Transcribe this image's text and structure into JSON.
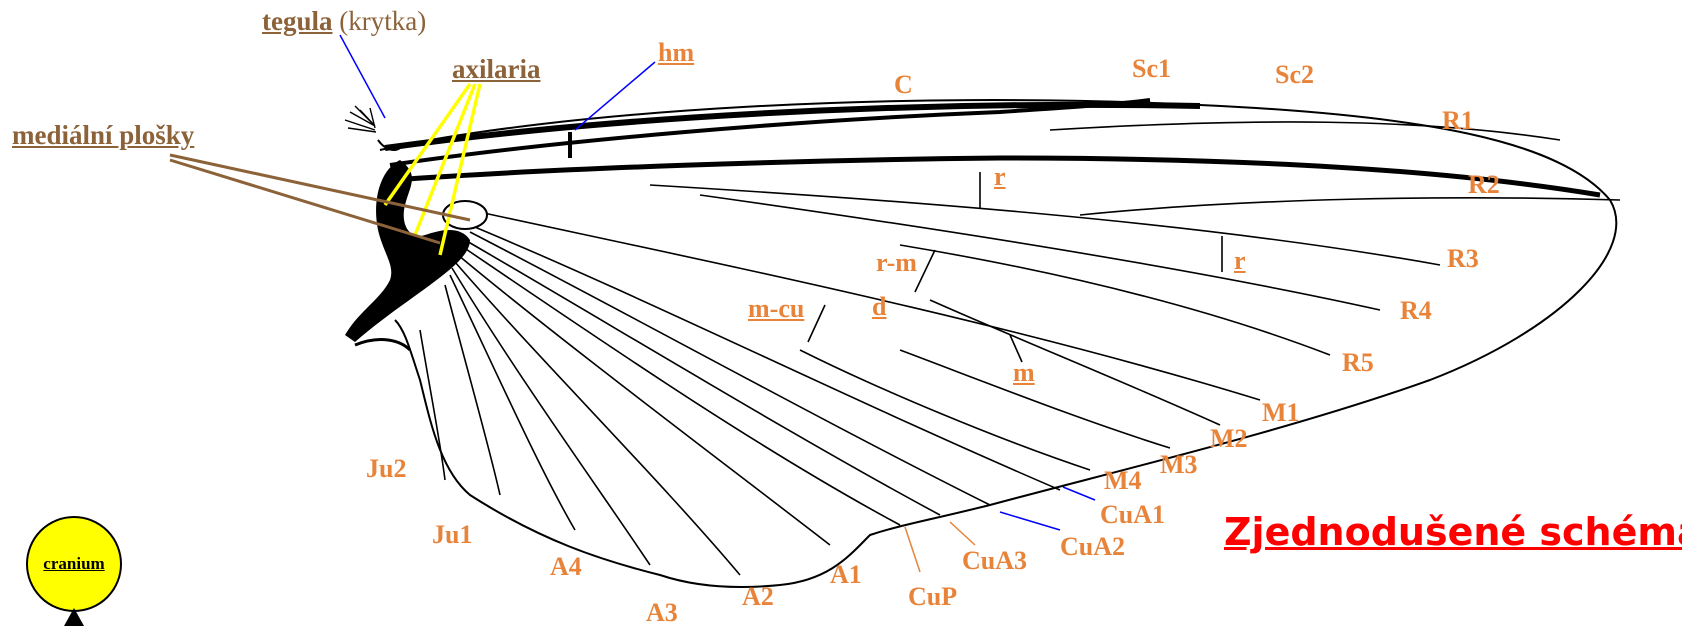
{
  "title": "Zjednodušené schéma",
  "annotations": {
    "tegula": "tegula",
    "tegula_note": "(krytka)",
    "axilaria": "axilaria",
    "medialni": "mediální plošky",
    "hm": "hm"
  },
  "veins": {
    "C": "C",
    "Sc1": "Sc1",
    "Sc2": "Sc2",
    "R1": "R1",
    "R2": "R2",
    "R3": "R3",
    "R4": "R4",
    "R5": "R5",
    "M1": "M1",
    "M2": "M2",
    "M3": "M3",
    "M4": "M4",
    "CuA1": "CuA1",
    "CuA2": "CuA2",
    "CuA3": "CuA3",
    "CuP": "CuP",
    "A1": "A1",
    "A2": "A2",
    "A3": "A3",
    "A4": "A4",
    "Ju1": "Ju1",
    "Ju2": "Ju2"
  },
  "crossveins": {
    "r": "r",
    "r2": "r",
    "rm": "r-m",
    "mcu": "m-cu",
    "d": "d",
    "m": "m"
  },
  "node": {
    "label": "cranium",
    "color": "#ffff00"
  },
  "colors": {
    "vein_label": "#e8833a",
    "annotation": "#8c6239",
    "title": "#ff0000",
    "pointer_blue": "#0000ff",
    "pointer_yellow": "#ffff00"
  }
}
